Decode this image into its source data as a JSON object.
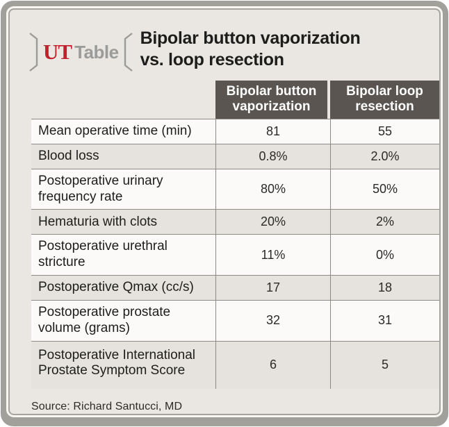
{
  "logo": {
    "brand": "UT",
    "label": "Table",
    "icons": [
      "bracket-left-icon",
      "bracket-right-icon"
    ]
  },
  "title": {
    "line1": "Bipolar button vaporization",
    "line2": "vs. loop resection"
  },
  "chart_data": {
    "type": "table",
    "title": "Bipolar button vaporization vs. loop resection",
    "columns": [
      "Bipolar button vaporization",
      "Bipolar loop resection"
    ],
    "rows": [
      {
        "label": "Mean operative time (min)",
        "values": [
          "81",
          "55"
        ]
      },
      {
        "label": "Blood loss",
        "values": [
          "0.8%",
          "2.0%"
        ]
      },
      {
        "label": "Postoperative urinary frequency rate",
        "values": [
          "80%",
          "50%"
        ]
      },
      {
        "label": "Hematuria with clots",
        "values": [
          "20%",
          "2%"
        ]
      },
      {
        "label": "Postoperative urethral stricture",
        "values": [
          "11%",
          "0%"
        ]
      },
      {
        "label": "Postoperative Qmax (cc/s)",
        "values": [
          "17",
          "18"
        ]
      },
      {
        "label": "Postoperative prostate volume (grams)",
        "values": [
          "32",
          "31"
        ]
      },
      {
        "label": "Postoperative International Prostate Symptom Score",
        "values": [
          "6",
          "5"
        ]
      }
    ],
    "source": "Source: Richard Santucci, MD"
  },
  "colors": {
    "accent_red": "#c2202c",
    "header_bg": "#5a5550",
    "header_text": "#ffffff",
    "card_bg": "#eae7e2",
    "row_bg": "#fbfaf8",
    "row_alt_bg": "#e6e3de",
    "rule": "#8d8a85",
    "frame": "#a2a09b",
    "text": "#1d1d1b",
    "logo_gray": "#9b9b99"
  }
}
